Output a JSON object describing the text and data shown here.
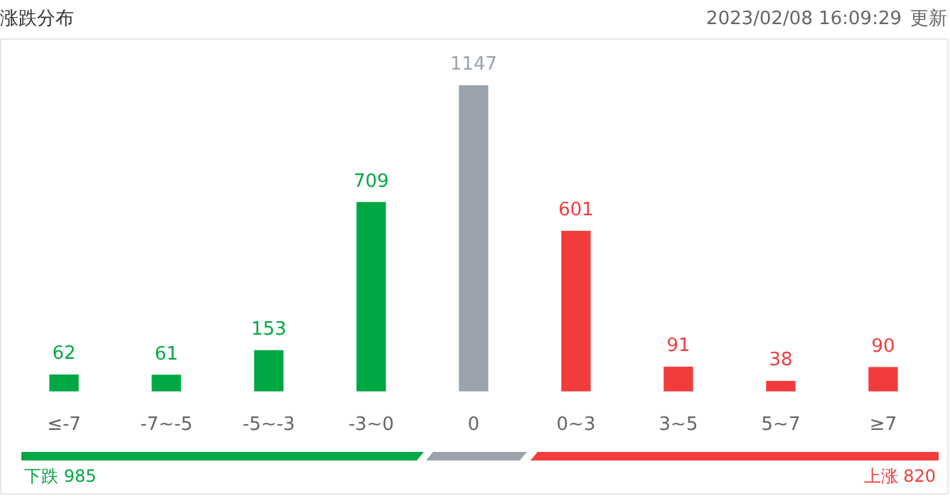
{
  "chart_data": {
    "type": "bar",
    "title": "涨跌分布",
    "subtitle": "2023/02/08 16:09:29",
    "categories": [
      "≤-7",
      "-7~-5",
      "-5~-3",
      "-3~0",
      "0",
      "0~3",
      "3~5",
      "5~7",
      "≥7"
    ],
    "values": [
      62,
      61,
      153,
      709,
      1147,
      601,
      91,
      38,
      90
    ],
    "colors": [
      "#00a843",
      "#00a843",
      "#00a843",
      "#00a843",
      "#9aa3ad",
      "#f23c3c",
      "#f23c3c",
      "#f23c3c",
      "#f23c3c"
    ],
    "data_labels": true,
    "grid": false,
    "legend": false,
    "tick_labels": "x",
    "annotations": [
      "下跌 985",
      "上涨 820",
      "更新"
    ]
  }
}
